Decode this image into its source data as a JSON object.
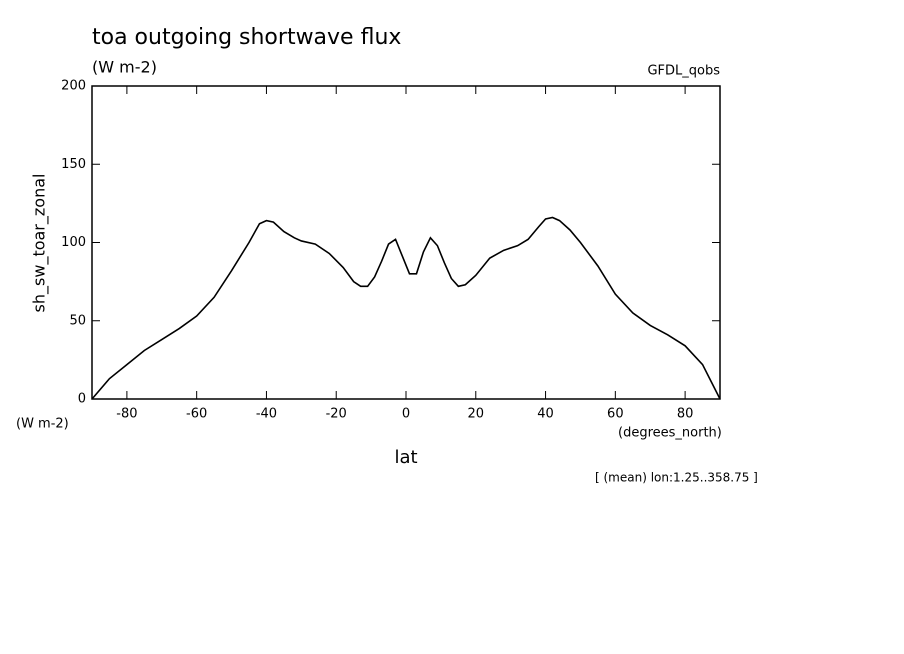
{
  "chart_data": {
    "type": "line",
    "title": "toa outgoing shortwave flux",
    "subtitle": "(W m-2)",
    "dataset": "GFDL_qobs",
    "y_label": "sh_sw_toar_zonal",
    "y_units": "(W m-2)",
    "x_label": "lat",
    "x_units": "(degrees_north)",
    "note": "[ (mean) lon:1.25..358.75 ]",
    "color": "#000000",
    "x": [
      -90,
      -85,
      -80,
      -75,
      -70,
      -65,
      -60,
      -55,
      -50,
      -45,
      -42,
      -40,
      -38,
      -35,
      -32,
      -30,
      -26,
      -22,
      -18,
      -15,
      -13,
      -11,
      -9,
      -7,
      -5,
      -3,
      -1,
      1,
      3,
      5,
      7,
      9,
      11,
      13,
      15,
      17,
      20,
      24,
      28,
      32,
      35,
      38,
      40,
      42,
      44,
      47,
      50,
      55,
      60,
      65,
      70,
      75,
      80,
      85,
      90
    ],
    "values": [
      0,
      13,
      22,
      31,
      38,
      45,
      53,
      65,
      82,
      100,
      112,
      114,
      113,
      107,
      103,
      101,
      99,
      93,
      84,
      75,
      72,
      72,
      78,
      88,
      99,
      102,
      91,
      80,
      80,
      94,
      103,
      98,
      87,
      77,
      72,
      73,
      79,
      90,
      95,
      98,
      102,
      110,
      115,
      116,
      114,
      108,
      100,
      85,
      67,
      55,
      47,
      41,
      34,
      22,
      0
    ],
    "xlim": [
      -90,
      90
    ],
    "ylim": [
      0,
      200
    ],
    "xticks": [
      -80,
      -60,
      -40,
      -20,
      0,
      20,
      40,
      60,
      80
    ],
    "yticks": [
      0,
      50,
      100,
      150,
      200
    ]
  }
}
